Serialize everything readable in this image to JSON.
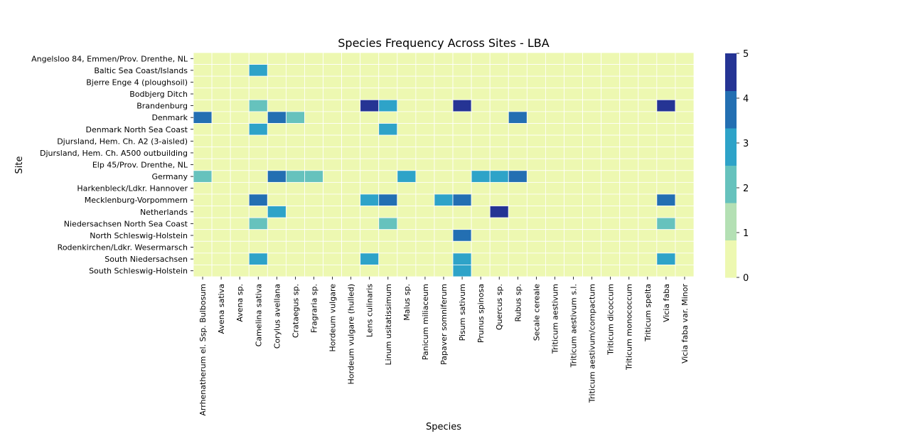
{
  "chart_data": {
    "type": "heatmap",
    "title": "Species Frequency Across Sites - LBA",
    "xlabel": "Species",
    "ylabel": "Site",
    "sites": [
      "Angelsloo 84, Emmen/Prov. Drenthe, NL",
      "Baltic Sea Coast/Islands",
      "Bjerre Enge 4 (ploughsoil)",
      "Bodbjerg Ditch",
      "Brandenburg",
      "Denmark",
      "Denmark North Sea Coast",
      "Djursland, Hem. Ch. A2 (3-aisled)",
      "Djursland, Hem. Ch. A500 outbuilding",
      "Elp 45/Prov. Drenthe, NL",
      "Germany",
      "Harkenbleck/Ldkr. Hannover",
      "Mecklenburg-Vorpommern",
      "Netherlands",
      "Niedersachsen North Sea Coast",
      "North Schleswig-Holstein",
      "Rodenkirchen/Ldkr. Wesermarsch",
      "South Niedersachsen",
      "South Schleswig-Holstein"
    ],
    "species": [
      "Arrhenatherum el. Ssp. Bulbosum",
      "Avena sativa",
      "Avena sp.",
      "Camelina sativa",
      "Corylus avellana",
      "Crataegus sp.",
      "Fragraria sp.",
      "Hordeum vulgare",
      "Hordeum vulgare (hulled)",
      "Lens culinaris",
      "Linum usitatissimum",
      "Malus sp.",
      "Panicum miliaceum",
      "Papaver somniferum",
      "Pisum sativum",
      "Prunus spinosa",
      "Quercus sp.",
      "Rubus sp.",
      "Secale cereale",
      "Triticum aestivum",
      "Triticum aestivum s.l.",
      "Triticum aestivum/compactum",
      "Triticum dicoccum",
      "Triticum monococcum",
      "Triticum spelta",
      "Vicia faba",
      "Vicia faba var. Minor"
    ],
    "values": [
      [
        0,
        0,
        0,
        0,
        0,
        0,
        0,
        0,
        0,
        0,
        0,
        0,
        0,
        0,
        0,
        0,
        0,
        0,
        0,
        0,
        0,
        0,
        0,
        0,
        0,
        0,
        0
      ],
      [
        0,
        0,
        0,
        3,
        0,
        0,
        0,
        0,
        0,
        0,
        0,
        0,
        0,
        0,
        0,
        0,
        0,
        0,
        0,
        0,
        0,
        0,
        0,
        0,
        0,
        0,
        0
      ],
      [
        0,
        0,
        0,
        0,
        0,
        0,
        0,
        0,
        0,
        0,
        0,
        0,
        0,
        0,
        0,
        0,
        0,
        0,
        0,
        0,
        0,
        0,
        0,
        0,
        0,
        0,
        0
      ],
      [
        0,
        0,
        0,
        0,
        0,
        0,
        0,
        0,
        0,
        0,
        0,
        0,
        0,
        0,
        0,
        0,
        0,
        0,
        0,
        0,
        0,
        0,
        0,
        0,
        0,
        0,
        0
      ],
      [
        0,
        0,
        0,
        2,
        0,
        0,
        0,
        0,
        0,
        5,
        3,
        0,
        0,
        0,
        5,
        0,
        0,
        0,
        0,
        0,
        0,
        0,
        0,
        0,
        0,
        5,
        0
      ],
      [
        4,
        0,
        0,
        0,
        4,
        2,
        0,
        0,
        0,
        0,
        0,
        0,
        0,
        0,
        0,
        0,
        0,
        4,
        0,
        0,
        0,
        0,
        0,
        0,
        0,
        0,
        0
      ],
      [
        0,
        0,
        0,
        3,
        0,
        0,
        0,
        0,
        0,
        0,
        3,
        0,
        0,
        0,
        0,
        0,
        0,
        0,
        0,
        0,
        0,
        0,
        0,
        0,
        0,
        0,
        0
      ],
      [
        0,
        0,
        0,
        0,
        0,
        0,
        0,
        0,
        0,
        0,
        0,
        0,
        0,
        0,
        0,
        0,
        0,
        0,
        0,
        0,
        0,
        0,
        0,
        0,
        0,
        0,
        0
      ],
      [
        0,
        0,
        0,
        0,
        0,
        0,
        0,
        0,
        0,
        0,
        0,
        0,
        0,
        0,
        0,
        0,
        0,
        0,
        0,
        0,
        0,
        0,
        0,
        0,
        0,
        0,
        0
      ],
      [
        0,
        0,
        0,
        0,
        0,
        0,
        0,
        0,
        0,
        0,
        0,
        0,
        0,
        0,
        0,
        0,
        0,
        0,
        0,
        0,
        0,
        0,
        0,
        0,
        0,
        0,
        0
      ],
      [
        2,
        0,
        0,
        0,
        4,
        2,
        2,
        0,
        0,
        0,
        0,
        3,
        0,
        0,
        0,
        3,
        3,
        4,
        0,
        0,
        0,
        0,
        0,
        0,
        0,
        0,
        0
      ],
      [
        0,
        0,
        0,
        0,
        0,
        0,
        0,
        0,
        0,
        0,
        0,
        0,
        0,
        0,
        0,
        0,
        0,
        0,
        0,
        0,
        0,
        0,
        0,
        0,
        0,
        0,
        0
      ],
      [
        0,
        0,
        0,
        4,
        0,
        0,
        0,
        0,
        0,
        3,
        4,
        0,
        0,
        3,
        4,
        0,
        0,
        0,
        0,
        0,
        0,
        0,
        0,
        0,
        0,
        4,
        0
      ],
      [
        0,
        0,
        0,
        0,
        3,
        0,
        0,
        0,
        0,
        0,
        0,
        0,
        0,
        0,
        0,
        0,
        5,
        0,
        0,
        0,
        0,
        0,
        0,
        0,
        0,
        0,
        0
      ],
      [
        0,
        0,
        0,
        2,
        0,
        0,
        0,
        0,
        0,
        0,
        2,
        0,
        0,
        0,
        0,
        0,
        0,
        0,
        0,
        0,
        0,
        0,
        0,
        0,
        0,
        2,
        0
      ],
      [
        0,
        0,
        0,
        0,
        0,
        0,
        0,
        0,
        0,
        0,
        0,
        0,
        0,
        0,
        4,
        0,
        0,
        0,
        0,
        0,
        0,
        0,
        0,
        0,
        0,
        0,
        0
      ],
      [
        0,
        0,
        0,
        0,
        0,
        0,
        0,
        0,
        0,
        0,
        0,
        0,
        0,
        0,
        0,
        0,
        0,
        0,
        0,
        0,
        0,
        0,
        0,
        0,
        0,
        0,
        0
      ],
      [
        0,
        0,
        0,
        3,
        0,
        0,
        0,
        0,
        0,
        3,
        0,
        0,
        0,
        0,
        3,
        0,
        0,
        0,
        0,
        0,
        0,
        0,
        0,
        0,
        0,
        3,
        0
      ],
      [
        0,
        0,
        0,
        0,
        0,
        0,
        0,
        0,
        0,
        0,
        0,
        0,
        0,
        0,
        3,
        0,
        0,
        0,
        0,
        0,
        0,
        0,
        0,
        0,
        0,
        0,
        0
      ]
    ],
    "colorbar": {
      "range": [
        0,
        5
      ],
      "ticks": [
        "0",
        "1",
        "2",
        "3",
        "4",
        "5"
      ],
      "colors": [
        "#edf8b1",
        "#c7e9b4",
        "#7fcdbb",
        "#41b6c4",
        "#1d91c0",
        "#225ea8",
        "#253494"
      ]
    },
    "palette": {
      "v0": "#edf8b1",
      "v1": "#c7e9b4",
      "v2": "#66c2bd",
      "v3": "#2ea3c8",
      "v4": "#236fb2",
      "v5": "#253494",
      "cb0": "#edf8b1",
      "cb1": "#b4e0b4",
      "cb2": "#66c2bd",
      "cb3": "#2ea3c8",
      "cb4": "#236fb2",
      "cb5": "#253494"
    },
    "grid": true
  }
}
